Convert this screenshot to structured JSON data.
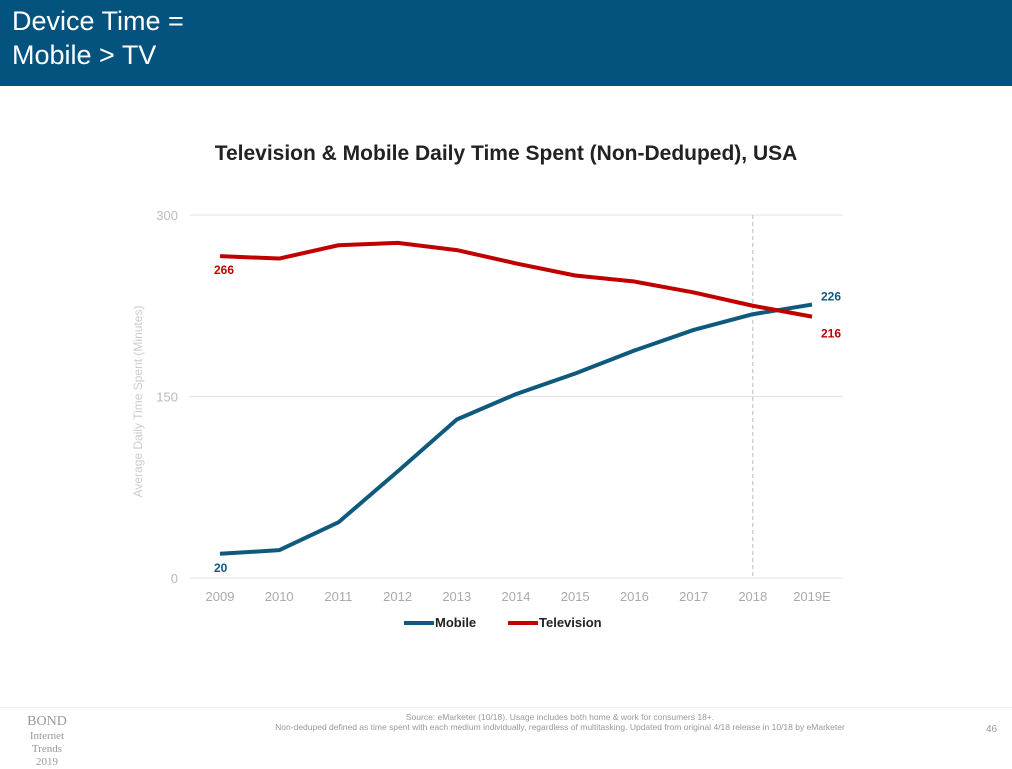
{
  "header": {
    "title": "Device Time =\nMobile > TV",
    "background": "#04537e"
  },
  "chart_data": {
    "type": "line",
    "title": "Television & Mobile Daily Time Spent (Non-Deduped), USA",
    "xlabel": "",
    "ylabel": "Average Daily Time Spent (Minutes)",
    "categories": [
      "2009",
      "2010",
      "2011",
      "2012",
      "2013",
      "2014",
      "2015",
      "2016",
      "2017",
      "2018",
      "2019E"
    ],
    "ylim": [
      0,
      300
    ],
    "yticks": [
      "0",
      "150",
      "300"
    ],
    "grid": true,
    "legend_placement": "bottom",
    "reference_line": "2018",
    "series": [
      {
        "name": "Mobile",
        "color": "#0e5a7d",
        "values": [
          20,
          23,
          46,
          88,
          131,
          152,
          169,
          188,
          205,
          218,
          226
        ],
        "labels": {
          "first": "20",
          "last": "226"
        }
      },
      {
        "name": "Television",
        "color": "#c00000",
        "values": [
          266,
          264,
          275,
          277,
          271,
          260,
          250,
          245,
          236,
          225,
          216
        ],
        "labels": {
          "first": "266",
          "last": "216"
        }
      }
    ]
  },
  "footer": {
    "logo": {
      "line1": "BOND",
      "line2": "Internet Trends",
      "line3": "2019"
    },
    "source_line1": "Source: eMarketer (10/18). Usage includes both home & work for consumers 18+.",
    "source_line2": "Non-deduped defined as time spent with each medium individually, regardless of multitasking. Updated from original 4/18 release in 10/18 by eMarketer",
    "page_number": "46"
  }
}
